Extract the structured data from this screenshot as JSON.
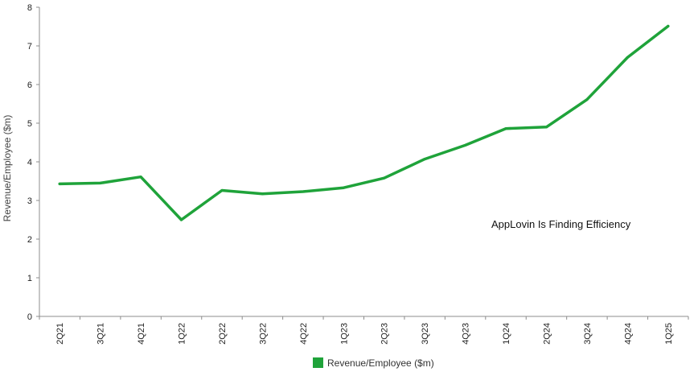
{
  "chart_data": {
    "type": "line",
    "title": "",
    "xlabel": "",
    "ylabel": "Revenue/Employee ($m)",
    "categories": [
      "2Q21",
      "3Q21",
      "4Q21",
      "1Q22",
      "2Q22",
      "3Q22",
      "4Q22",
      "1Q23",
      "2Q23",
      "3Q23",
      "4Q23",
      "1Q24",
      "2Q24",
      "3Q24",
      "4Q24",
      "1Q25"
    ],
    "series": [
      {
        "name": "Revenue/Employee ($m)",
        "color": "#1fa33a",
        "values": [
          3.43,
          3.45,
          3.61,
          2.5,
          3.26,
          3.17,
          3.23,
          3.33,
          3.58,
          4.07,
          4.43,
          4.86,
          4.9,
          5.61,
          6.7,
          7.51
        ]
      }
    ],
    "ylim": [
      0,
      8
    ],
    "yticks": [
      0,
      1,
      2,
      3,
      4,
      5,
      6,
      7,
      8
    ],
    "annotation": "AppLovin Is Finding Efficiency",
    "grid": false,
    "legend_position": "bottom-center"
  }
}
